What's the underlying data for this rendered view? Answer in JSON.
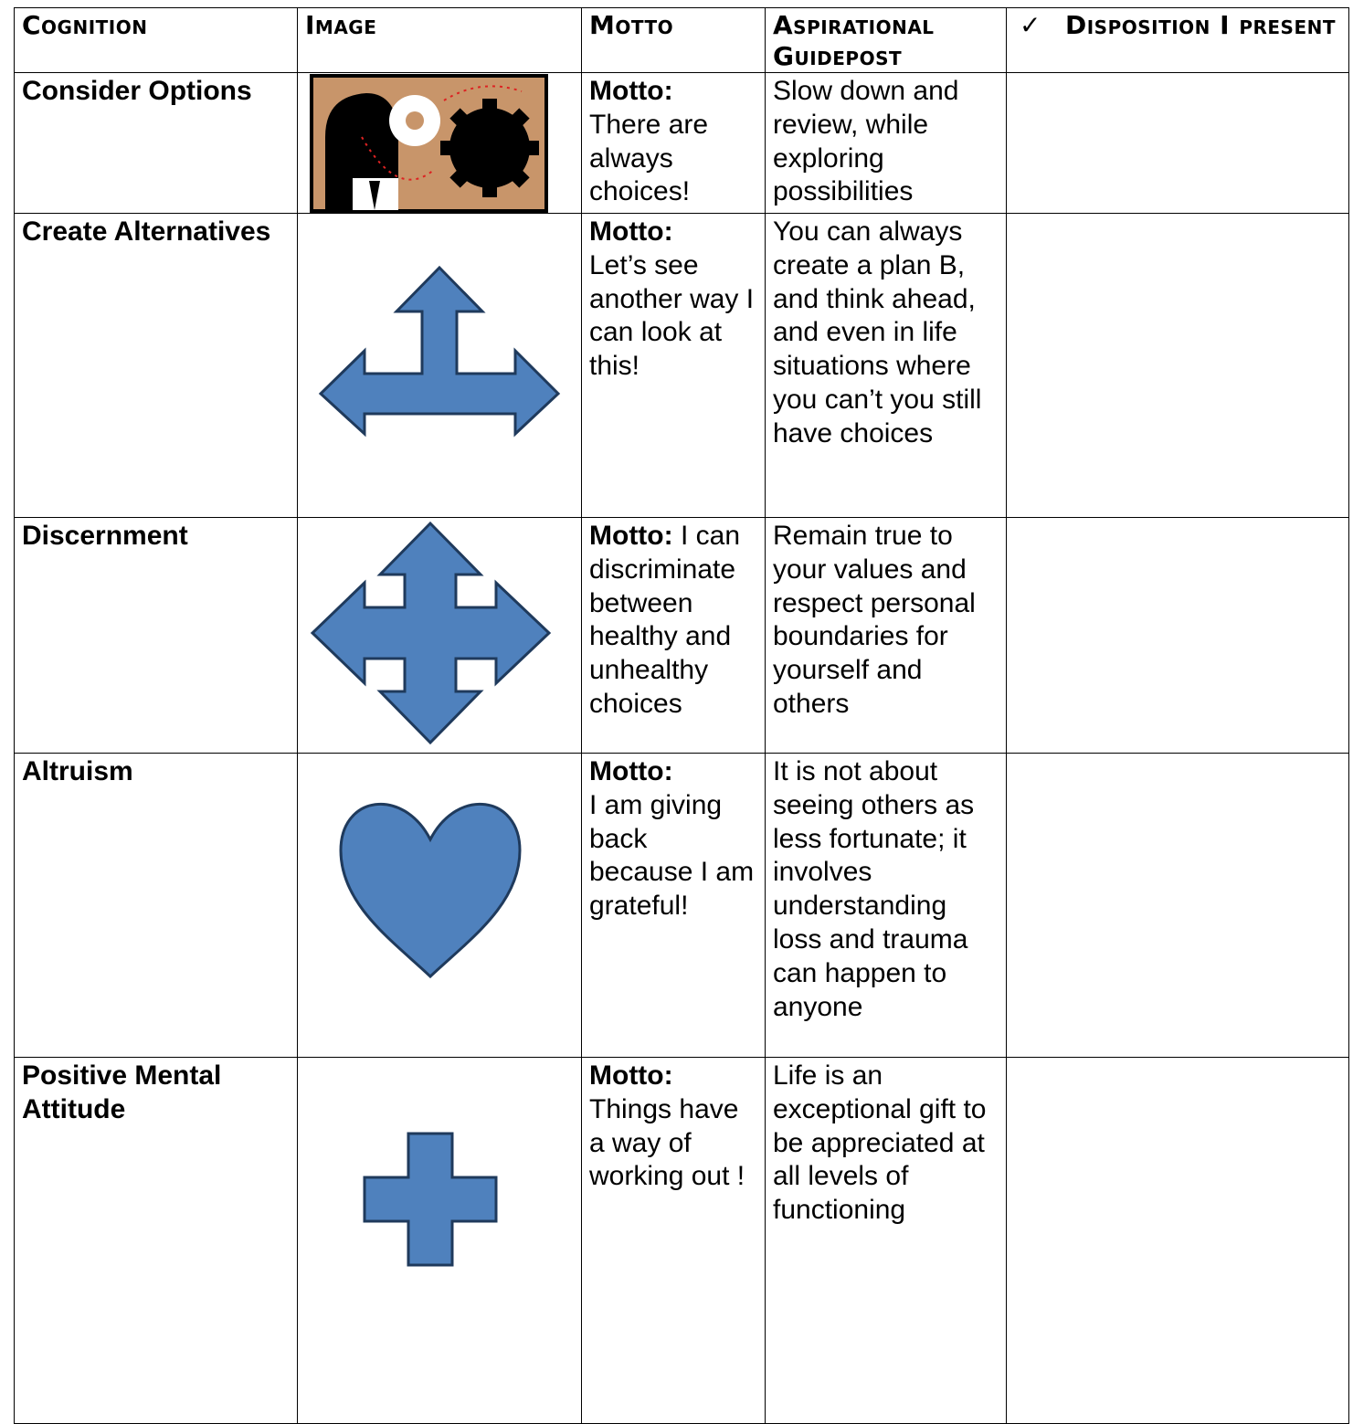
{
  "table": {
    "check": "✓",
    "header": [
      "Cognition",
      "Image",
      "Motto",
      "Aspirational Guidepost",
      "Disposition I present"
    ],
    "rows": [
      {
        "cognition": "Consider Options",
        "motto": {
          "label": "Motto:",
          "text": "There are always choices!"
        },
        "guidepost": "Slow down and review, while exploring possibilities"
      },
      {
        "cognition": "Create Alternatives",
        "motto": {
          "label": "Motto:",
          "text": "Let’s see another way I can look at this!"
        },
        "guidepost": "You can always create a plan B, and think ahead, and even in life situations where you can’t you still have choices"
      },
      {
        "cognition": "Discernment",
        "motto": {
          "label": "Motto:",
          "text": "I can discriminate between healthy and unhealthy choices"
        },
        "guidepost": "Remain true to your values and respect personal boundaries for yourself and others"
      },
      {
        "cognition": "Altruism",
        "motto": {
          "label": "Motto:",
          "text": "I am giving back because I am grateful!"
        },
        "guidepost": "It is not about seeing others as less fortunate; it involves understanding loss and trauma can happen to anyone"
      },
      {
        "cognition": "Positive Mental Attitude",
        "motto": {
          "label": "Motto:",
          "text": "Things have a way of working out !"
        },
        "guidepost": "Life is an exceptional gift to be appreciated at all levels of functioning"
      }
    ]
  }
}
